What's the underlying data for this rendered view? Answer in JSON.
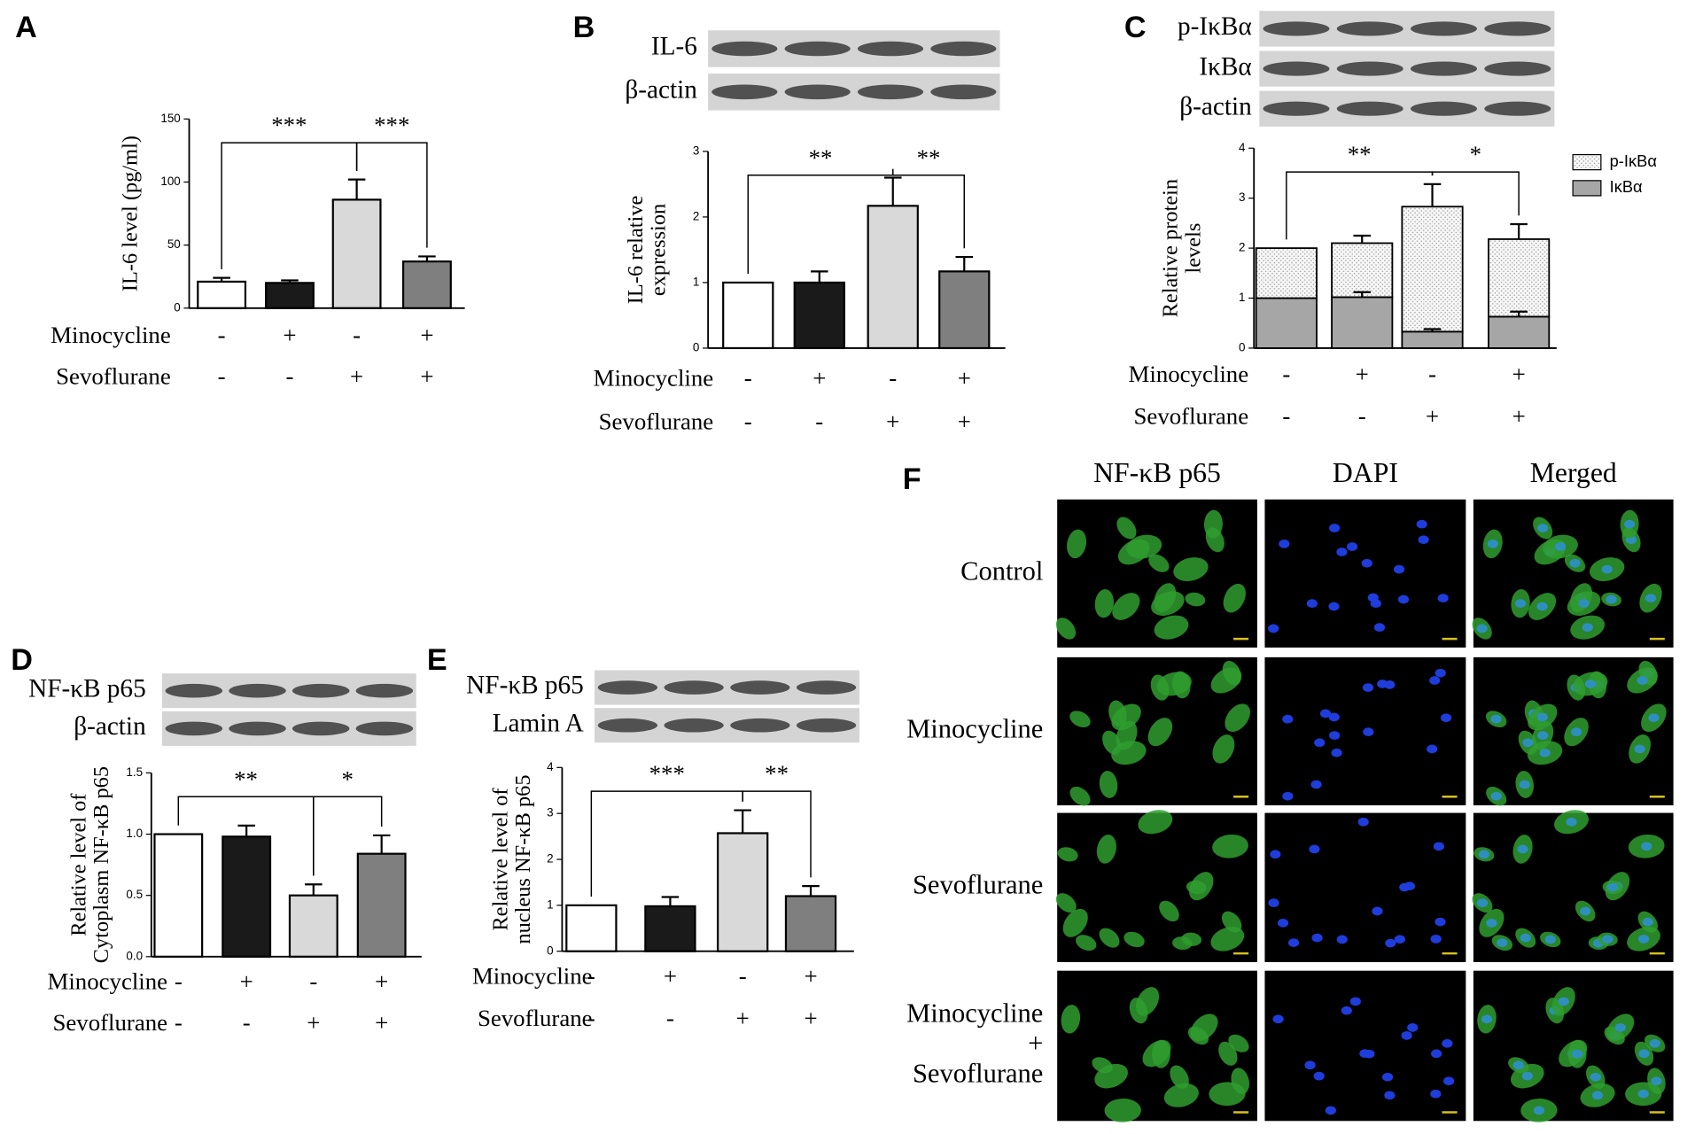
{
  "chart_data": [
    {
      "type": "bar",
      "panel": "A",
      "ylabel": [
        "IL-6 level (pg/ml)"
      ],
      "values": [
        21,
        20,
        86,
        37
      ],
      "errors": [
        3,
        2,
        16,
        4
      ],
      "colors": [
        "#ffffff",
        "#1a1a1a",
        "#d9d9d9",
        "#7f7f7f"
      ],
      "ylim": [
        0,
        150
      ],
      "yticks": [
        0,
        50,
        100,
        150
      ],
      "conditions": [
        {
          "name": "Minocycline",
          "signs": [
            "-",
            "+",
            "-",
            "+"
          ]
        },
        {
          "name": "Sevoflurane",
          "signs": [
            "-",
            "-",
            "+",
            "+"
          ]
        }
      ],
      "significance": [
        {
          "from": 0,
          "to": 2,
          "label": "***"
        },
        {
          "from": 2,
          "to": 3,
          "label": "***"
        }
      ]
    },
    {
      "type": "bar",
      "panel": "B",
      "blot_labels": [
        "IL-6",
        "β-actin"
      ],
      "ylabel": [
        "IL-6 relative",
        "expression"
      ],
      "values": [
        1,
        1.0,
        2.17,
        1.17
      ],
      "errors": [
        0,
        0.17,
        0.43,
        0.22
      ],
      "colors": [
        "#ffffff",
        "#1a1a1a",
        "#d9d9d9",
        "#7f7f7f"
      ],
      "ylim": [
        0,
        3
      ],
      "yticks": [
        0,
        1,
        2,
        3
      ],
      "conditions": [
        {
          "name": "Minocycline",
          "signs": [
            "-",
            "+",
            "-",
            "+"
          ]
        },
        {
          "name": "Sevoflurane",
          "signs": [
            "-",
            "-",
            "+",
            "+"
          ]
        }
      ],
      "significance": [
        {
          "from": 0,
          "to": 2,
          "label": "**"
        },
        {
          "from": 2,
          "to": 3,
          "label": "**"
        }
      ]
    },
    {
      "type": "stacked_bar",
      "panel": "C",
      "blot_labels": [
        "p-IκBα",
        "IκBα",
        "β-actin"
      ],
      "ylabel": [
        "Relative protein",
        "levels"
      ],
      "series": [
        {
          "name": "IκBα",
          "color": "#a6a6a6",
          "values": [
            1,
            1.02,
            0.33,
            0.63
          ],
          "errors": [
            0,
            0.1,
            0.05,
            0.1
          ]
        },
        {
          "name": "p-IκBα",
          "color": "#f4f4f4",
          "pattern": "dots",
          "values": [
            1.0,
            1.08,
            2.5,
            1.55
          ],
          "errors": [
            0,
            0.15,
            0.45,
            0.3
          ]
        }
      ],
      "ylim": [
        0,
        4
      ],
      "yticks": [
        0,
        1,
        2,
        3,
        4
      ],
      "conditions": [
        {
          "name": "Minocycline",
          "signs": [
            "-",
            "+",
            "-",
            "+"
          ]
        },
        {
          "name": "Sevoflurane",
          "signs": [
            "-",
            "-",
            "+",
            "+"
          ]
        }
      ],
      "significance": [
        {
          "from": 0,
          "to": 2,
          "label": "**"
        },
        {
          "from": 2,
          "to": 3,
          "label": "*"
        }
      ]
    },
    {
      "type": "bar",
      "panel": "D",
      "blot_labels": [
        "NF-κB p65",
        "β-actin"
      ],
      "ylabel": [
        "Relative level of",
        "Cytoplasm NF-κB p65"
      ],
      "values": [
        1,
        0.98,
        0.5,
        0.84
      ],
      "errors": [
        0,
        0.09,
        0.09,
        0.15
      ],
      "colors": [
        "#ffffff",
        "#1a1a1a",
        "#d9d9d9",
        "#7f7f7f"
      ],
      "ylim": [
        0,
        1.5
      ],
      "yticks": [
        {
          "value": 0,
          "label": "0.0"
        },
        {
          "value": 0.5,
          "label": "0.5"
        },
        {
          "value": 1,
          "label": "1.0"
        },
        {
          "value": 1.5,
          "label": "1.5"
        }
      ],
      "conditions": [
        {
          "name": "Minocycline",
          "signs": [
            "-",
            "+",
            "-",
            "+"
          ]
        },
        {
          "name": "Sevoflurane",
          "signs": [
            "-",
            "-",
            "+",
            "+"
          ]
        }
      ],
      "significance": [
        {
          "from": 0,
          "to": 2,
          "label": "**"
        },
        {
          "from": 2,
          "to": 3,
          "label": "*"
        }
      ]
    },
    {
      "type": "bar",
      "panel": "E",
      "blot_labels": [
        "NF-κB p65",
        "Lamin A"
      ],
      "ylabel": [
        "Relative level of",
        "nucleus NF-κB p65"
      ],
      "values": [
        1,
        0.98,
        2.57,
        1.2
      ],
      "errors": [
        0,
        0.2,
        0.5,
        0.22
      ],
      "colors": [
        "#ffffff",
        "#1a1a1a",
        "#d9d9d9",
        "#7f7f7f"
      ],
      "ylim": [
        0,
        4
      ],
      "yticks": [
        0,
        1,
        2,
        3,
        4
      ],
      "conditions": [
        {
          "name": "Minocycline",
          "signs": [
            "-",
            "+",
            "-",
            "+"
          ]
        },
        {
          "name": "Sevoflurane",
          "signs": [
            "-",
            "-",
            "+",
            "+"
          ]
        }
      ],
      "significance": [
        {
          "from": 0,
          "to": 2,
          "label": "***"
        },
        {
          "from": 2,
          "to": 3,
          "label": "**"
        }
      ]
    }
  ],
  "figure_f": {
    "panel": "F",
    "columns": [
      "NF-κB p65",
      "DAPI",
      "Merged"
    ],
    "rows": [
      [
        "Control"
      ],
      [
        "Minocycline"
      ],
      [
        "Sevoflurane"
      ],
      [
        "Minocycline",
        "+",
        "Sevoflurane"
      ]
    ]
  }
}
